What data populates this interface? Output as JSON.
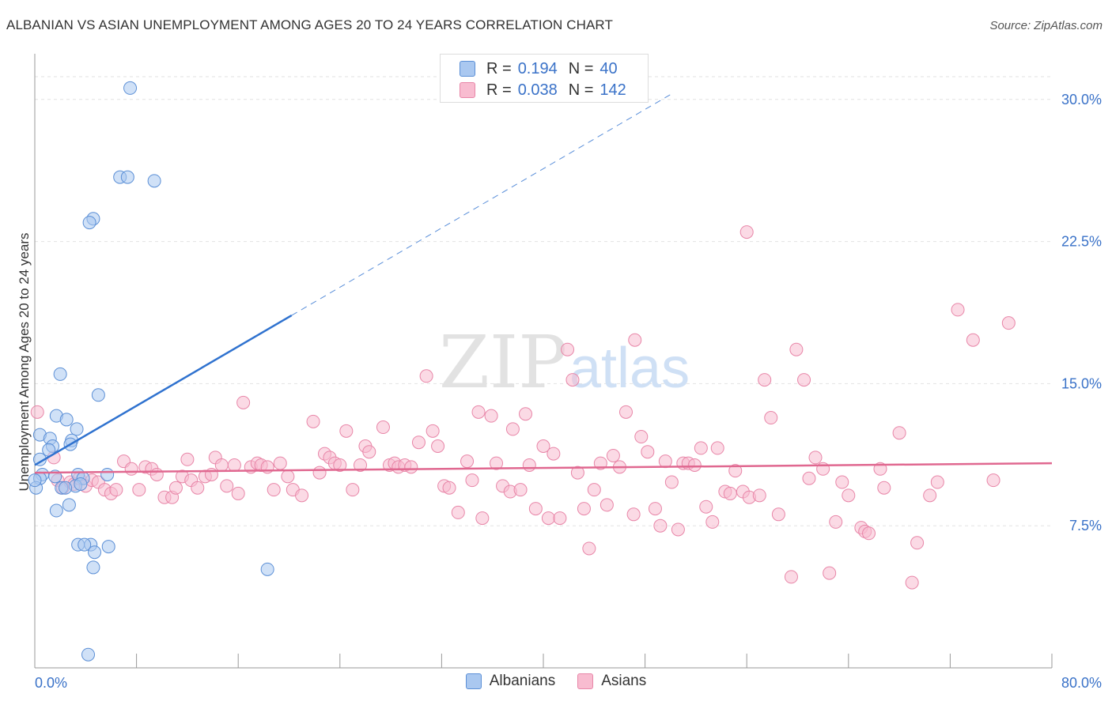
{
  "header": {
    "title": "ALBANIAN VS ASIAN UNEMPLOYMENT AMONG AGES 20 TO 24 YEARS CORRELATION CHART",
    "source": "Source: ZipAtlas.com"
  },
  "legend": {
    "rows": [
      {
        "r_label": "R =",
        "r_value": "0.194",
        "n_label": "N =",
        "n_value": "40"
      },
      {
        "r_label": "R =",
        "r_value": "0.038",
        "n_label": "N =",
        "n_value": "142"
      }
    ]
  },
  "watermark": {
    "zip": "ZIP",
    "atlas": "atlas"
  },
  "colors": {
    "albanians_fill": "#aac8f0",
    "albanians_stroke": "#5b8fd6",
    "albanians_line": "#2f72cf",
    "asians_fill": "#f8bcd0",
    "asians_stroke": "#e886a8",
    "asians_line": "#e06890",
    "tick_label": "#3a72c8",
    "grid": "#e2e2e2"
  },
  "chart_data": {
    "type": "scatter",
    "ylabel": "Unemployment Among Ages 20 to 24 years",
    "xlim": [
      0,
      80
    ],
    "ylim": [
      0,
      30
    ],
    "x_ticks": [
      "0.0%",
      "80.0%"
    ],
    "y_ticks": [
      {
        "value": 7.5,
        "label": "7.5%"
      },
      {
        "value": 15,
        "label": "15.0%"
      },
      {
        "value": 22.5,
        "label": "22.5%"
      },
      {
        "value": 30,
        "label": "30.0%"
      }
    ],
    "legend_position": "top-center",
    "series": [
      {
        "name": "Albanians",
        "trend": {
          "x1": 0,
          "y1": 10.7,
          "x2": 20.2,
          "y2": 18.6,
          "dash_to_x": 50
        },
        "points": [
          [
            7.5,
            30.6
          ],
          [
            6.7,
            25.9
          ],
          [
            7.3,
            25.9
          ],
          [
            9.4,
            25.7
          ],
          [
            4.6,
            23.7
          ],
          [
            4.3,
            23.5
          ],
          [
            2.0,
            15.5
          ],
          [
            5.0,
            14.4
          ],
          [
            1.7,
            13.3
          ],
          [
            2.5,
            13.1
          ],
          [
            3.3,
            12.6
          ],
          [
            0.4,
            12.3
          ],
          [
            1.2,
            12.1
          ],
          [
            2.9,
            12.0
          ],
          [
            1.4,
            11.7
          ],
          [
            1.1,
            11.5
          ],
          [
            0.4,
            11.0
          ],
          [
            2.8,
            11.8
          ],
          [
            0.6,
            10.2
          ],
          [
            0.4,
            10.0
          ],
          [
            1.6,
            10.1
          ],
          [
            3.4,
            10.2
          ],
          [
            3.8,
            10.0
          ],
          [
            5.7,
            10.2
          ],
          [
            3.2,
            9.6
          ],
          [
            3.6,
            9.7
          ],
          [
            2.1,
            9.5
          ],
          [
            2.4,
            9.5
          ],
          [
            0.1,
            9.5
          ],
          [
            2.7,
            8.6
          ],
          [
            1.7,
            8.3
          ],
          [
            3.4,
            6.5
          ],
          [
            4.4,
            6.5
          ],
          [
            3.9,
            6.5
          ],
          [
            5.8,
            6.4
          ],
          [
            4.7,
            6.1
          ],
          [
            4.6,
            5.3
          ],
          [
            18.3,
            5.2
          ],
          [
            4.2,
            0.7
          ],
          [
            0.0,
            9.9
          ]
        ]
      },
      {
        "name": "Asians",
        "trend": {
          "x1": 0,
          "y1": 10.3,
          "x2": 80,
          "y2": 10.8
        },
        "points": [
          [
            0.2,
            13.5
          ],
          [
            1.5,
            11.1
          ],
          [
            1.8,
            9.9
          ],
          [
            2.2,
            9.5
          ],
          [
            2.8,
            9.8
          ],
          [
            3.1,
            9.7
          ],
          [
            3.5,
            10.0
          ],
          [
            4.0,
            9.6
          ],
          [
            4.5,
            9.9
          ],
          [
            5.0,
            9.8
          ],
          [
            5.5,
            9.4
          ],
          [
            6.0,
            9.2
          ],
          [
            6.4,
            9.4
          ],
          [
            7.0,
            10.9
          ],
          [
            7.6,
            10.5
          ],
          [
            8.2,
            9.4
          ],
          [
            8.7,
            10.6
          ],
          [
            9.2,
            10.5
          ],
          [
            9.6,
            10.2
          ],
          [
            10.2,
            9.0
          ],
          [
            10.8,
            9.0
          ],
          [
            11.1,
            9.5
          ],
          [
            11.6,
            10.1
          ],
          [
            12.0,
            11.0
          ],
          [
            12.3,
            9.9
          ],
          [
            12.8,
            9.5
          ],
          [
            13.4,
            10.1
          ],
          [
            13.9,
            10.2
          ],
          [
            14.2,
            11.1
          ],
          [
            14.7,
            10.7
          ],
          [
            15.1,
            9.6
          ],
          [
            15.7,
            10.7
          ],
          [
            16.0,
            9.2
          ],
          [
            16.4,
            14.0
          ],
          [
            17.0,
            10.6
          ],
          [
            17.5,
            10.8
          ],
          [
            17.8,
            10.7
          ],
          [
            18.3,
            10.6
          ],
          [
            18.8,
            9.4
          ],
          [
            19.3,
            10.8
          ],
          [
            19.9,
            10.1
          ],
          [
            20.3,
            9.4
          ],
          [
            21.0,
            9.1
          ],
          [
            21.9,
            13.0
          ],
          [
            22.4,
            10.3
          ],
          [
            22.8,
            11.3
          ],
          [
            23.2,
            11.1
          ],
          [
            23.6,
            10.8
          ],
          [
            24.0,
            10.7
          ],
          [
            24.5,
            12.5
          ],
          [
            25.0,
            9.4
          ],
          [
            25.6,
            10.7
          ],
          [
            26.0,
            11.7
          ],
          [
            26.3,
            11.4
          ],
          [
            27.4,
            12.7
          ],
          [
            27.9,
            10.7
          ],
          [
            28.3,
            10.8
          ],
          [
            28.6,
            10.6
          ],
          [
            29.1,
            10.7
          ],
          [
            29.6,
            10.6
          ],
          [
            30.2,
            11.9
          ],
          [
            30.8,
            15.4
          ],
          [
            31.3,
            12.5
          ],
          [
            31.7,
            11.7
          ],
          [
            32.2,
            9.6
          ],
          [
            32.6,
            9.5
          ],
          [
            33.3,
            8.2
          ],
          [
            34.0,
            10.9
          ],
          [
            34.4,
            9.9
          ],
          [
            34.9,
            13.5
          ],
          [
            35.2,
            7.9
          ],
          [
            35.9,
            13.3
          ],
          [
            36.3,
            10.8
          ],
          [
            36.8,
            9.6
          ],
          [
            37.4,
            9.3
          ],
          [
            37.6,
            12.6
          ],
          [
            38.2,
            9.4
          ],
          [
            38.6,
            13.4
          ],
          [
            38.9,
            10.7
          ],
          [
            39.4,
            8.4
          ],
          [
            40.0,
            11.7
          ],
          [
            40.4,
            7.9
          ],
          [
            40.8,
            11.3
          ],
          [
            41.3,
            7.9
          ],
          [
            41.9,
            16.8
          ],
          [
            42.3,
            15.2
          ],
          [
            42.7,
            10.3
          ],
          [
            43.2,
            8.4
          ],
          [
            43.6,
            6.3
          ],
          [
            44.0,
            9.4
          ],
          [
            44.5,
            10.8
          ],
          [
            45.0,
            8.6
          ],
          [
            45.5,
            11.2
          ],
          [
            46.0,
            10.6
          ],
          [
            46.5,
            13.5
          ],
          [
            47.1,
            8.1
          ],
          [
            47.2,
            17.3
          ],
          [
            47.7,
            12.2
          ],
          [
            48.2,
            11.4
          ],
          [
            48.8,
            8.4
          ],
          [
            49.2,
            7.5
          ],
          [
            49.6,
            10.9
          ],
          [
            50.1,
            9.8
          ],
          [
            50.6,
            7.3
          ],
          [
            51.0,
            10.8
          ],
          [
            51.4,
            10.8
          ],
          [
            51.9,
            10.7
          ],
          [
            52.4,
            11.6
          ],
          [
            52.8,
            8.5
          ],
          [
            53.3,
            7.7
          ],
          [
            53.7,
            11.6
          ],
          [
            54.3,
            9.3
          ],
          [
            54.7,
            9.2
          ],
          [
            55.1,
            10.4
          ],
          [
            55.7,
            9.3
          ],
          [
            56.0,
            23.0
          ],
          [
            56.2,
            9.0
          ],
          [
            57.0,
            9.1
          ],
          [
            57.4,
            15.2
          ],
          [
            57.9,
            13.2
          ],
          [
            58.5,
            8.1
          ],
          [
            59.5,
            4.8
          ],
          [
            59.9,
            16.8
          ],
          [
            60.5,
            15.2
          ],
          [
            60.9,
            10.0
          ],
          [
            61.4,
            11.1
          ],
          [
            62.0,
            10.5
          ],
          [
            62.5,
            5.0
          ],
          [
            63.0,
            7.7
          ],
          [
            63.5,
            9.8
          ],
          [
            64.0,
            9.1
          ],
          [
            65.0,
            7.4
          ],
          [
            65.3,
            7.2
          ],
          [
            65.6,
            7.1
          ],
          [
            66.5,
            10.5
          ],
          [
            66.8,
            9.5
          ],
          [
            68.0,
            12.4
          ],
          [
            69.0,
            4.5
          ],
          [
            69.4,
            6.6
          ],
          [
            70.4,
            9.1
          ],
          [
            71.0,
            9.8
          ],
          [
            72.6,
            18.9
          ],
          [
            73.8,
            17.3
          ],
          [
            75.4,
            9.9
          ],
          [
            76.6,
            18.2
          ]
        ]
      }
    ]
  }
}
